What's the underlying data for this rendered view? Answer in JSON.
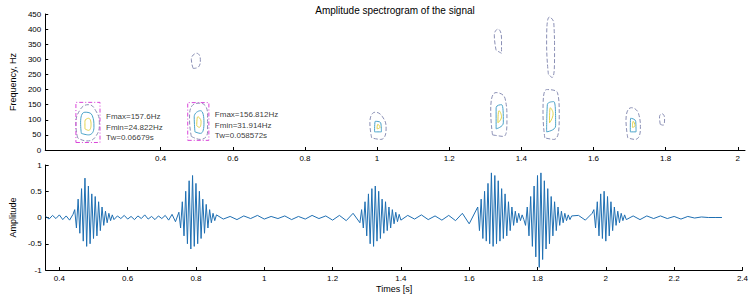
{
  "chart_data": [
    {
      "type": "contour",
      "title": "Amplitude spectrogram of the signal",
      "ylabel": "Frequency, Hz",
      "xlim": [
        0.08,
        2.02
      ],
      "xticks": [
        0.4,
        0.6,
        0.8,
        1,
        1.2,
        1.4,
        1.6,
        1.8,
        2
      ],
      "ylim": [
        0,
        450
      ],
      "yticks": [
        0,
        50,
        100,
        150,
        200,
        250,
        300,
        350,
        400,
        450
      ],
      "grid": false,
      "contours": [
        {
          "color": "#8a8fb5",
          "line_style": "dashed",
          "points": [
            [
              0.17,
              40
            ],
            [
              0.165,
              80
            ],
            [
              0.175,
              130
            ],
            [
              0.2,
              150
            ],
            [
              0.22,
              130
            ],
            [
              0.23,
              90
            ],
            [
              0.22,
              45
            ],
            [
              0.195,
              30
            ]
          ]
        },
        {
          "color": "#4aa3c9",
          "line_style": "solid",
          "points": [
            [
              0.18,
              55
            ],
            [
              0.178,
              90
            ],
            [
              0.19,
              125
            ],
            [
              0.21,
              115
            ],
            [
              0.215,
              75
            ],
            [
              0.2,
              50
            ]
          ]
        },
        {
          "color": "#e3d34a",
          "line_style": "solid",
          "points": [
            [
              0.19,
              70
            ],
            [
              0.19,
              95
            ],
            [
              0.2,
              105
            ],
            [
              0.207,
              85
            ],
            [
              0.2,
              65
            ]
          ]
        },
        {
          "color": "#8a8fb5",
          "line_style": "dashed",
          "points": [
            [
              0.485,
              45
            ],
            [
              0.48,
              100
            ],
            [
              0.49,
              150
            ],
            [
              0.51,
              155
            ],
            [
              0.53,
              120
            ],
            [
              0.53,
              60
            ],
            [
              0.51,
              35
            ]
          ]
        },
        {
          "color": "#4aa3c9",
          "line_style": "solid",
          "points": [
            [
              0.495,
              60
            ],
            [
              0.493,
              110
            ],
            [
              0.51,
              130
            ],
            [
              0.52,
              90
            ],
            [
              0.51,
              55
            ]
          ]
        },
        {
          "color": "#e3d34a",
          "line_style": "solid",
          "points": [
            [
              0.5,
              80
            ],
            [
              0.503,
              110
            ],
            [
              0.512,
              95
            ],
            [
              0.507,
              75
            ]
          ]
        },
        {
          "color": "#8a8fb5",
          "line_style": "dashed",
          "points": [
            [
              0.49,
              270
            ],
            [
              0.485,
              300
            ],
            [
              0.5,
              320
            ],
            [
              0.51,
              300
            ],
            [
              0.505,
              275
            ]
          ]
        },
        {
          "color": "#8a8fb5",
          "line_style": "dashed",
          "points": [
            [
              0.985,
              40
            ],
            [
              0.98,
              90
            ],
            [
              0.995,
              125
            ],
            [
              1.015,
              110
            ],
            [
              1.025,
              70
            ],
            [
              1.01,
              35
            ]
          ]
        },
        {
          "color": "#4aa3c9",
          "line_style": "solid",
          "points": [
            [
              0.993,
              60
            ],
            [
              0.995,
              95
            ],
            [
              1.01,
              90
            ],
            [
              1.012,
              60
            ]
          ]
        },
        {
          "color": "#e3d34a",
          "line_style": "solid",
          "points": [
            [
              1.0,
              70
            ],
            [
              1.002,
              85
            ],
            [
              1.008,
              75
            ]
          ]
        },
        {
          "color": "#8a8fb5",
          "line_style": "dashed",
          "points": [
            [
              1.32,
              50
            ],
            [
              1.315,
              130
            ],
            [
              1.33,
              190
            ],
            [
              1.355,
              170
            ],
            [
              1.36,
              100
            ],
            [
              1.35,
              45
            ]
          ]
        },
        {
          "color": "#4aa3c9",
          "line_style": "solid",
          "points": [
            [
              1.33,
              70
            ],
            [
              1.33,
              140
            ],
            [
              1.345,
              150
            ],
            [
              1.35,
              90
            ]
          ]
        },
        {
          "color": "#e3d34a",
          "line_style": "solid",
          "points": [
            [
              1.335,
              90
            ],
            [
              1.338,
              130
            ],
            [
              1.345,
              110
            ]
          ]
        },
        {
          "color": "#8a8fb5",
          "line_style": "dashed",
          "points": [
            [
              1.33,
              330
            ],
            [
              1.325,
              380
            ],
            [
              1.335,
              400
            ],
            [
              1.345,
              370
            ],
            [
              1.345,
              320
            ]
          ]
        },
        {
          "color": "#8a8fb5",
          "line_style": "dashed",
          "points": [
            [
              1.465,
              40
            ],
            [
              1.46,
              120
            ],
            [
              1.47,
              200
            ],
            [
              1.5,
              190
            ],
            [
              1.505,
              110
            ],
            [
              1.49,
              35
            ]
          ]
        },
        {
          "color": "#4aa3c9",
          "line_style": "solid",
          "points": [
            [
              1.47,
              60
            ],
            [
              1.472,
              150
            ],
            [
              1.49,
              160
            ],
            [
              1.495,
              80
            ]
          ]
        },
        {
          "color": "#e3d34a",
          "line_style": "solid",
          "points": [
            [
              1.478,
              90
            ],
            [
              1.48,
              140
            ],
            [
              1.488,
              120
            ]
          ]
        },
        {
          "color": "#8a8fb5",
          "line_style": "dashed",
          "points": [
            [
              1.475,
              250
            ],
            [
              1.47,
              350
            ],
            [
              1.478,
              440
            ],
            [
              1.49,
              420
            ],
            [
              1.492,
              320
            ],
            [
              1.485,
              240
            ]
          ]
        },
        {
          "color": "#8a8fb5",
          "line_style": "dashed",
          "points": [
            [
              1.695,
              40
            ],
            [
              1.69,
              100
            ],
            [
              1.705,
              140
            ],
            [
              1.725,
              120
            ],
            [
              1.73,
              70
            ],
            [
              1.715,
              35
            ]
          ]
        },
        {
          "color": "#4aa3c9",
          "line_style": "solid",
          "points": [
            [
              1.702,
              60
            ],
            [
              1.703,
              105
            ],
            [
              1.717,
              95
            ],
            [
              1.718,
              60
            ]
          ]
        },
        {
          "color": "#e3d34a",
          "line_style": "solid",
          "points": [
            [
              1.708,
              75
            ],
            [
              1.71,
              95
            ],
            [
              1.715,
              80
            ]
          ]
        },
        {
          "color": "#8a8fb5",
          "line_style": "dashed",
          "points": [
            [
              1.785,
              85
            ],
            [
              1.783,
              110
            ],
            [
              1.79,
              120
            ],
            [
              1.797,
              105
            ],
            [
              1.793,
              82
            ]
          ]
        }
      ],
      "annotations": [
        {
          "t_start": 0.165,
          "t_end": 0.2318,
          "f_min": 24.822,
          "f_max": 157.6,
          "color": "#d946d9",
          "labels": [
            "Fmax=157.6Hz",
            "Fmin=24.822Hz",
            "Tw=0.06679s"
          ]
        },
        {
          "t_start": 0.475,
          "t_end": 0.5336,
          "f_min": 31.914,
          "f_max": 156.812,
          "color": "#d946d9",
          "labels": [
            "Fmax=156.812Hz",
            "Fmin=31.914Hz",
            "Tw=0.058572s"
          ]
        }
      ]
    },
    {
      "type": "line",
      "xlabel": "Times [s]",
      "ylabel": "Amplitude",
      "xlim": [
        0.36,
        2.4
      ],
      "xticks": [
        0.4,
        0.6,
        0.8,
        1,
        1.2,
        1.4,
        1.6,
        1.8,
        2,
        2.2,
        2.4
      ],
      "ylim": [
        -1,
        1
      ],
      "yticks": [
        -1,
        -0.5,
        0,
        0.5,
        1
      ],
      "grid": false,
      "color": "#1f6fb2",
      "x": [
        0.36,
        0.37,
        0.38,
        0.39,
        0.4,
        0.41,
        0.42,
        0.43,
        0.44,
        0.445,
        0.45,
        0.455,
        0.46,
        0.465,
        0.47,
        0.475,
        0.48,
        0.485,
        0.49,
        0.495,
        0.5,
        0.505,
        0.51,
        0.515,
        0.52,
        0.525,
        0.53,
        0.535,
        0.54,
        0.545,
        0.55,
        0.555,
        0.56,
        0.57,
        0.58,
        0.59,
        0.6,
        0.61,
        0.62,
        0.63,
        0.64,
        0.65,
        0.66,
        0.67,
        0.68,
        0.69,
        0.7,
        0.71,
        0.72,
        0.73,
        0.74,
        0.75,
        0.755,
        0.76,
        0.765,
        0.77,
        0.775,
        0.78,
        0.785,
        0.79,
        0.795,
        0.8,
        0.805,
        0.81,
        0.815,
        0.82,
        0.825,
        0.83,
        0.835,
        0.84,
        0.845,
        0.85,
        0.855,
        0.86,
        0.88,
        0.9,
        0.92,
        0.94,
        0.96,
        0.98,
        1,
        1.02,
        1.04,
        1.06,
        1.08,
        1.1,
        1.12,
        1.14,
        1.16,
        1.18,
        1.2,
        1.22,
        1.24,
        1.26,
        1.28,
        1.285,
        1.29,
        1.295,
        1.3,
        1.305,
        1.31,
        1.315,
        1.32,
        1.325,
        1.33,
        1.335,
        1.34,
        1.345,
        1.35,
        1.355,
        1.36,
        1.365,
        1.37,
        1.375,
        1.38,
        1.385,
        1.39,
        1.395,
        1.4,
        1.42,
        1.44,
        1.46,
        1.48,
        1.5,
        1.52,
        1.54,
        1.56,
        1.58,
        1.6,
        1.625,
        1.63,
        1.635,
        1.64,
        1.645,
        1.65,
        1.655,
        1.66,
        1.665,
        1.67,
        1.675,
        1.68,
        1.685,
        1.69,
        1.695,
        1.7,
        1.705,
        1.71,
        1.715,
        1.72,
        1.725,
        1.73,
        1.735,
        1.74,
        1.745,
        1.75,
        1.755,
        1.76,
        1.765,
        1.77,
        1.775,
        1.78,
        1.785,
        1.79,
        1.795,
        1.8,
        1.805,
        1.81,
        1.815,
        1.82,
        1.825,
        1.83,
        1.835,
        1.84,
        1.845,
        1.85,
        1.855,
        1.86,
        1.865,
        1.87,
        1.875,
        1.88,
        1.885,
        1.89,
        1.895,
        1.9,
        1.92,
        1.94,
        1.96,
        1.965,
        1.97,
        1.975,
        1.98,
        1.985,
        1.99,
        1.995,
        2,
        2.005,
        2.01,
        2.015,
        2.02,
        2.025,
        2.03,
        2.035,
        2.04,
        2.045,
        2.05,
        2.055,
        2.06,
        2.08,
        2.1,
        2.12,
        2.14,
        2.16,
        2.18,
        2.2,
        2.22,
        2.24,
        2.26,
        2.28,
        2.3,
        2.32,
        2.34
      ],
      "values": [
        0.02,
        -0.03,
        0.04,
        -0.02,
        0.05,
        -0.04,
        0.03,
        -0.05,
        0.06,
        0.15,
        -0.2,
        0.35,
        -0.3,
        0.55,
        -0.45,
        0.75,
        -0.55,
        0.6,
        -0.5,
        0.45,
        -0.4,
        0.4,
        -0.35,
        0.3,
        -0.25,
        0.2,
        -0.15,
        0.12,
        -0.1,
        0.08,
        -0.06,
        0.05,
        -0.04,
        0.03,
        -0.02,
        0.04,
        -0.03,
        0.02,
        -0.04,
        0.03,
        -0.02,
        0.05,
        -0.03,
        0.02,
        -0.04,
        0.03,
        -0.02,
        0.04,
        -0.05,
        0.06,
        -0.08,
        0.1,
        -0.2,
        0.3,
        -0.35,
        0.5,
        -0.5,
        0.7,
        -0.6,
        0.8,
        -0.55,
        0.65,
        -0.5,
        0.5,
        -0.4,
        0.35,
        -0.3,
        0.25,
        -0.2,
        0.15,
        -0.1,
        0.08,
        -0.06,
        0.05,
        -0.03,
        0.02,
        -0.04,
        0.03,
        -0.02,
        0.04,
        -0.03,
        0.02,
        -0.02,
        0.03,
        -0.04,
        0.02,
        -0.03,
        0.04,
        -0.02,
        0.03,
        -0.05,
        0.04,
        -0.06,
        0.08,
        -0.1,
        0.15,
        -0.2,
        0.3,
        -0.35,
        0.45,
        -0.5,
        0.55,
        -0.55,
        0.6,
        -0.45,
        0.5,
        -0.4,
        0.35,
        -0.3,
        0.3,
        -0.25,
        0.2,
        -0.2,
        0.15,
        -0.12,
        0.1,
        -0.08,
        0.06,
        -0.05,
        0.04,
        -0.03,
        0.05,
        -0.04,
        0.03,
        -0.05,
        0.04,
        -0.06,
        0.08,
        -0.12,
        0.2,
        -0.25,
        0.35,
        -0.4,
        0.5,
        -0.45,
        0.65,
        -0.5,
        0.85,
        -0.55,
        0.8,
        -0.5,
        0.7,
        -0.45,
        0.55,
        -0.4,
        0.45,
        -0.35,
        0.3,
        -0.25,
        0.2,
        -0.15,
        0.12,
        -0.1,
        0.08,
        -0.06,
        0.05,
        -0.04,
        -0.15,
        0.2,
        -0.35,
        0.4,
        -0.55,
        0.6,
        -0.75,
        0.8,
        -0.95,
        0.85,
        -0.8,
        0.7,
        -0.6,
        0.55,
        -0.5,
        0.4,
        -0.35,
        0.3,
        -0.25,
        0.2,
        -0.15,
        0.12,
        -0.1,
        0.08,
        -0.06,
        0.05,
        -0.04,
        0.03,
        0.04,
        -0.05,
        0.08,
        0.15,
        -0.2,
        0.3,
        -0.35,
        0.45,
        -0.4,
        0.5,
        -0.45,
        0.4,
        -0.35,
        0.3,
        -0.25,
        0.2,
        -0.15,
        0.12,
        -0.1,
        0.08,
        -0.06,
        0.05,
        -0.04,
        0.03,
        -0.04,
        0.03,
        -0.02,
        0.03,
        -0.02,
        0.02,
        -0.03,
        0.02,
        -0.01,
        0.01,
        0,
        0,
        0
      ]
    }
  ]
}
